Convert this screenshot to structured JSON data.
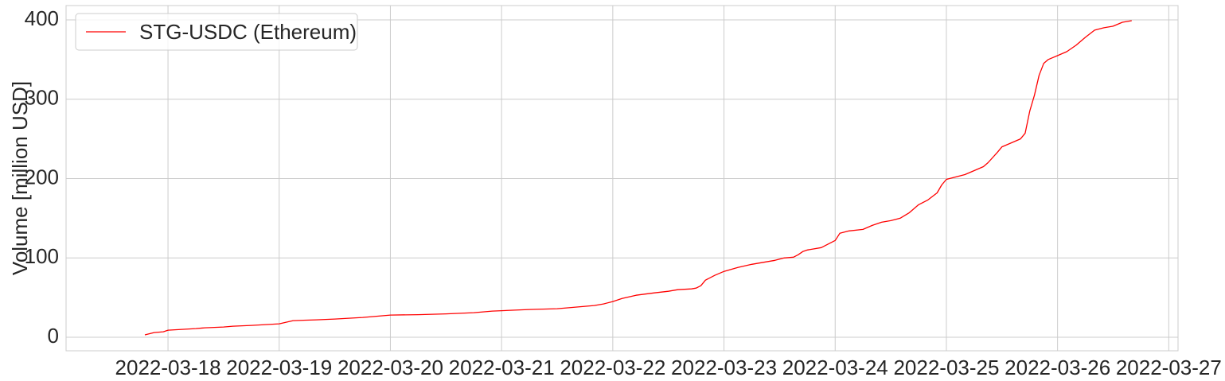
{
  "chart_data": {
    "type": "line",
    "xlabel": "",
    "ylabel": "Volume [million USD]",
    "x_ticks": [
      "2022-03-18",
      "2022-03-19",
      "2022-03-20",
      "2022-03-21",
      "2022-03-22",
      "2022-03-23",
      "2022-03-24",
      "2022-03-25",
      "2022-03-26",
      "2022-03-27"
    ],
    "y_ticks": [
      0,
      100,
      200,
      300,
      400
    ],
    "xlim": [
      "2022-03-17 02:00",
      "2022-03-27 02:00"
    ],
    "ylim": [
      -17,
      418
    ],
    "grid": true,
    "legend_position": "top-left",
    "colors": {
      "series": "#ff0000",
      "grid": "#cccccc",
      "spine": "#cccccc",
      "text": "#262626"
    },
    "series": [
      {
        "name": "STG-USDC (Ethereum)",
        "points": [
          [
            "2022-03-17 19:00",
            3
          ],
          [
            "2022-03-17 21:00",
            6
          ],
          [
            "2022-03-17 23:00",
            7
          ],
          [
            "2022-03-18 00:00",
            9
          ],
          [
            "2022-03-18 03:00",
            10
          ],
          [
            "2022-03-18 06:00",
            11
          ],
          [
            "2022-03-18 08:00",
            12
          ],
          [
            "2022-03-18 12:00",
            13
          ],
          [
            "2022-03-18 14:00",
            14
          ],
          [
            "2022-03-18 18:00",
            15
          ],
          [
            "2022-03-18 21:00",
            16
          ],
          [
            "2022-03-19 00:00",
            17
          ],
          [
            "2022-03-19 03:00",
            21
          ],
          [
            "2022-03-19 08:00",
            22
          ],
          [
            "2022-03-19 12:00",
            23
          ],
          [
            "2022-03-19 18:00",
            25
          ],
          [
            "2022-03-19 22:00",
            27
          ],
          [
            "2022-03-20 00:00",
            28
          ],
          [
            "2022-03-20 06:00",
            28.5
          ],
          [
            "2022-03-20 12:00",
            29.5
          ],
          [
            "2022-03-20 18:00",
            31
          ],
          [
            "2022-03-20 22:00",
            33
          ],
          [
            "2022-03-21 00:00",
            33.5
          ],
          [
            "2022-03-21 06:00",
            35
          ],
          [
            "2022-03-21 12:00",
            36
          ],
          [
            "2022-03-21 16:00",
            38
          ],
          [
            "2022-03-21 20:00",
            40
          ],
          [
            "2022-03-21 22:00",
            42
          ],
          [
            "2022-03-22 00:00",
            45
          ],
          [
            "2022-03-22 02:00",
            49
          ],
          [
            "2022-03-22 05:00",
            53
          ],
          [
            "2022-03-22 09:00",
            56
          ],
          [
            "2022-03-22 12:00",
            58
          ],
          [
            "2022-03-22 14:00",
            60
          ],
          [
            "2022-03-22 17:00",
            61
          ],
          [
            "2022-03-22 18:00",
            62
          ],
          [
            "2022-03-22 19:00",
            65
          ],
          [
            "2022-03-22 20:00",
            72
          ],
          [
            "2022-03-22 22:00",
            78
          ],
          [
            "2022-03-23 00:00",
            83
          ],
          [
            "2022-03-23 03:00",
            88
          ],
          [
            "2022-03-23 06:00",
            92
          ],
          [
            "2022-03-23 09:00",
            95
          ],
          [
            "2022-03-23 11:00",
            97
          ],
          [
            "2022-03-23 13:00",
            100
          ],
          [
            "2022-03-23 15:00",
            101
          ],
          [
            "2022-03-23 16:00",
            104
          ],
          [
            "2022-03-23 17:00",
            108
          ],
          [
            "2022-03-23 18:00",
            110
          ],
          [
            "2022-03-23 21:00",
            113
          ],
          [
            "2022-03-23 22:00",
            116
          ],
          [
            "2022-03-24 00:00",
            122
          ],
          [
            "2022-03-24 01:00",
            131
          ],
          [
            "2022-03-24 03:00",
            134
          ],
          [
            "2022-03-24 06:00",
            136
          ],
          [
            "2022-03-24 08:00",
            141
          ],
          [
            "2022-03-24 10:00",
            145
          ],
          [
            "2022-03-24 12:00",
            147
          ],
          [
            "2022-03-24 14:00",
            150
          ],
          [
            "2022-03-24 16:00",
            157
          ],
          [
            "2022-03-24 18:00",
            167
          ],
          [
            "2022-03-24 20:00",
            173
          ],
          [
            "2022-03-24 22:00",
            182
          ],
          [
            "2022-03-24 23:00",
            192
          ],
          [
            "2022-03-25 00:00",
            199
          ],
          [
            "2022-03-25 02:00",
            202
          ],
          [
            "2022-03-25 04:00",
            205
          ],
          [
            "2022-03-25 06:00",
            210
          ],
          [
            "2022-03-25 08:00",
            215
          ],
          [
            "2022-03-25 09:00",
            220
          ],
          [
            "2022-03-25 11:00",
            233
          ],
          [
            "2022-03-25 12:00",
            240
          ],
          [
            "2022-03-25 14:00",
            245
          ],
          [
            "2022-03-25 16:00",
            250
          ],
          [
            "2022-03-25 17:00",
            257
          ],
          [
            "2022-03-25 18:00",
            285
          ],
          [
            "2022-03-25 19:00",
            305
          ],
          [
            "2022-03-25 20:00",
            330
          ],
          [
            "2022-03-25 21:00",
            345
          ],
          [
            "2022-03-25 22:00",
            350
          ],
          [
            "2022-03-26 00:00",
            355
          ],
          [
            "2022-03-26 02:00",
            360
          ],
          [
            "2022-03-26 04:00",
            368
          ],
          [
            "2022-03-26 06:00",
            378
          ],
          [
            "2022-03-26 08:00",
            387
          ],
          [
            "2022-03-26 10:00",
            390
          ],
          [
            "2022-03-26 12:00",
            392
          ],
          [
            "2022-03-26 14:00",
            397
          ],
          [
            "2022-03-26 16:00",
            399
          ]
        ]
      }
    ]
  }
}
